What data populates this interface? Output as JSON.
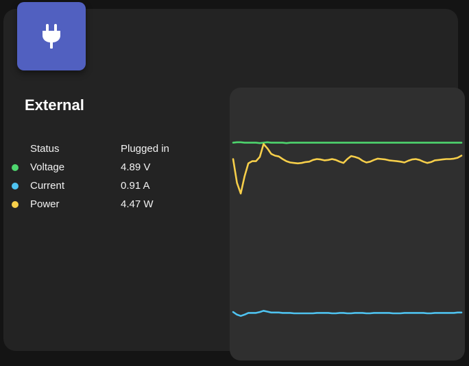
{
  "widget": {
    "title": "External",
    "icon": "power-plug-icon",
    "icon_tile_color": "#5160c0"
  },
  "stats": [
    {
      "key": "status",
      "label": "Status",
      "value": "Plugged in",
      "dot_color": null
    },
    {
      "key": "voltage",
      "label": "Voltage",
      "value": "4.89 V",
      "dot_color": "#4ed66e"
    },
    {
      "key": "current",
      "label": "Current",
      "value": "0.91 A",
      "dot_color": "#4fc3f0"
    },
    {
      "key": "power",
      "label": "Power",
      "value": "4.47 W",
      "dot_color": "#f7cf4a"
    }
  ],
  "chart_data": {
    "type": "line",
    "title": "",
    "xlabel": "",
    "ylabel": "",
    "grid": false,
    "legend": "none",
    "ylim": [
      0,
      6
    ],
    "x": [
      0,
      1,
      2,
      3,
      4,
      5,
      6,
      7,
      8,
      9,
      10,
      11,
      12,
      13,
      14,
      15,
      16,
      17,
      18,
      19,
      20,
      21,
      22,
      23,
      24,
      25,
      26,
      27,
      28,
      29,
      30,
      31,
      32,
      33,
      34,
      35,
      36,
      37,
      38,
      39,
      40,
      41,
      42,
      43,
      44,
      45,
      46,
      47,
      48,
      49,
      50,
      51,
      52,
      53,
      54,
      55,
      56,
      57,
      58,
      59,
      60
    ],
    "series": [
      {
        "key": "voltage",
        "color": "#4ed66e",
        "values": [
          4.88,
          4.89,
          4.89,
          4.88,
          4.88,
          4.88,
          4.88,
          4.87,
          4.88,
          4.89,
          4.88,
          4.88,
          4.88,
          4.88,
          4.87,
          4.88,
          4.88,
          4.88,
          4.88,
          4.88,
          4.88,
          4.88,
          4.88,
          4.88,
          4.88,
          4.88,
          4.88,
          4.88,
          4.88,
          4.88,
          4.88,
          4.88,
          4.88,
          4.88,
          4.88,
          4.88,
          4.88,
          4.88,
          4.88,
          4.88,
          4.88,
          4.88,
          4.88,
          4.88,
          4.88,
          4.88,
          4.88,
          4.88,
          4.88,
          4.88,
          4.88,
          4.88,
          4.88,
          4.88,
          4.88,
          4.88,
          4.88,
          4.88,
          4.88,
          4.88,
          4.88
        ]
      },
      {
        "key": "power",
        "color": "#f7cf4a",
        "values": [
          4.5,
          3.95,
          3.7,
          4.1,
          4.4,
          4.45,
          4.45,
          4.55,
          4.85,
          4.75,
          4.62,
          4.58,
          4.56,
          4.5,
          4.45,
          4.42,
          4.41,
          4.4,
          4.41,
          4.43,
          4.44,
          4.48,
          4.5,
          4.49,
          4.47,
          4.48,
          4.5,
          4.48,
          4.44,
          4.41,
          4.5,
          4.57,
          4.55,
          4.52,
          4.46,
          4.42,
          4.44,
          4.48,
          4.51,
          4.5,
          4.49,
          4.47,
          4.46,
          4.45,
          4.44,
          4.42,
          4.46,
          4.49,
          4.5,
          4.48,
          4.44,
          4.41,
          4.43,
          4.47,
          4.48,
          4.49,
          4.5,
          4.5,
          4.51,
          4.53,
          4.58
        ]
      },
      {
        "key": "current",
        "color": "#4fc3f0",
        "values": [
          0.95,
          0.89,
          0.86,
          0.89,
          0.93,
          0.93,
          0.93,
          0.95,
          0.98,
          0.96,
          0.94,
          0.94,
          0.94,
          0.93,
          0.93,
          0.93,
          0.92,
          0.92,
          0.92,
          0.92,
          0.92,
          0.92,
          0.93,
          0.93,
          0.93,
          0.93,
          0.92,
          0.92,
          0.93,
          0.93,
          0.92,
          0.92,
          0.93,
          0.93,
          0.93,
          0.92,
          0.92,
          0.93,
          0.93,
          0.93,
          0.93,
          0.93,
          0.92,
          0.92,
          0.92,
          0.93,
          0.93,
          0.93,
          0.93,
          0.93,
          0.93,
          0.92,
          0.92,
          0.93,
          0.93,
          0.93,
          0.93,
          0.93,
          0.93,
          0.94,
          0.94
        ]
      }
    ]
  }
}
